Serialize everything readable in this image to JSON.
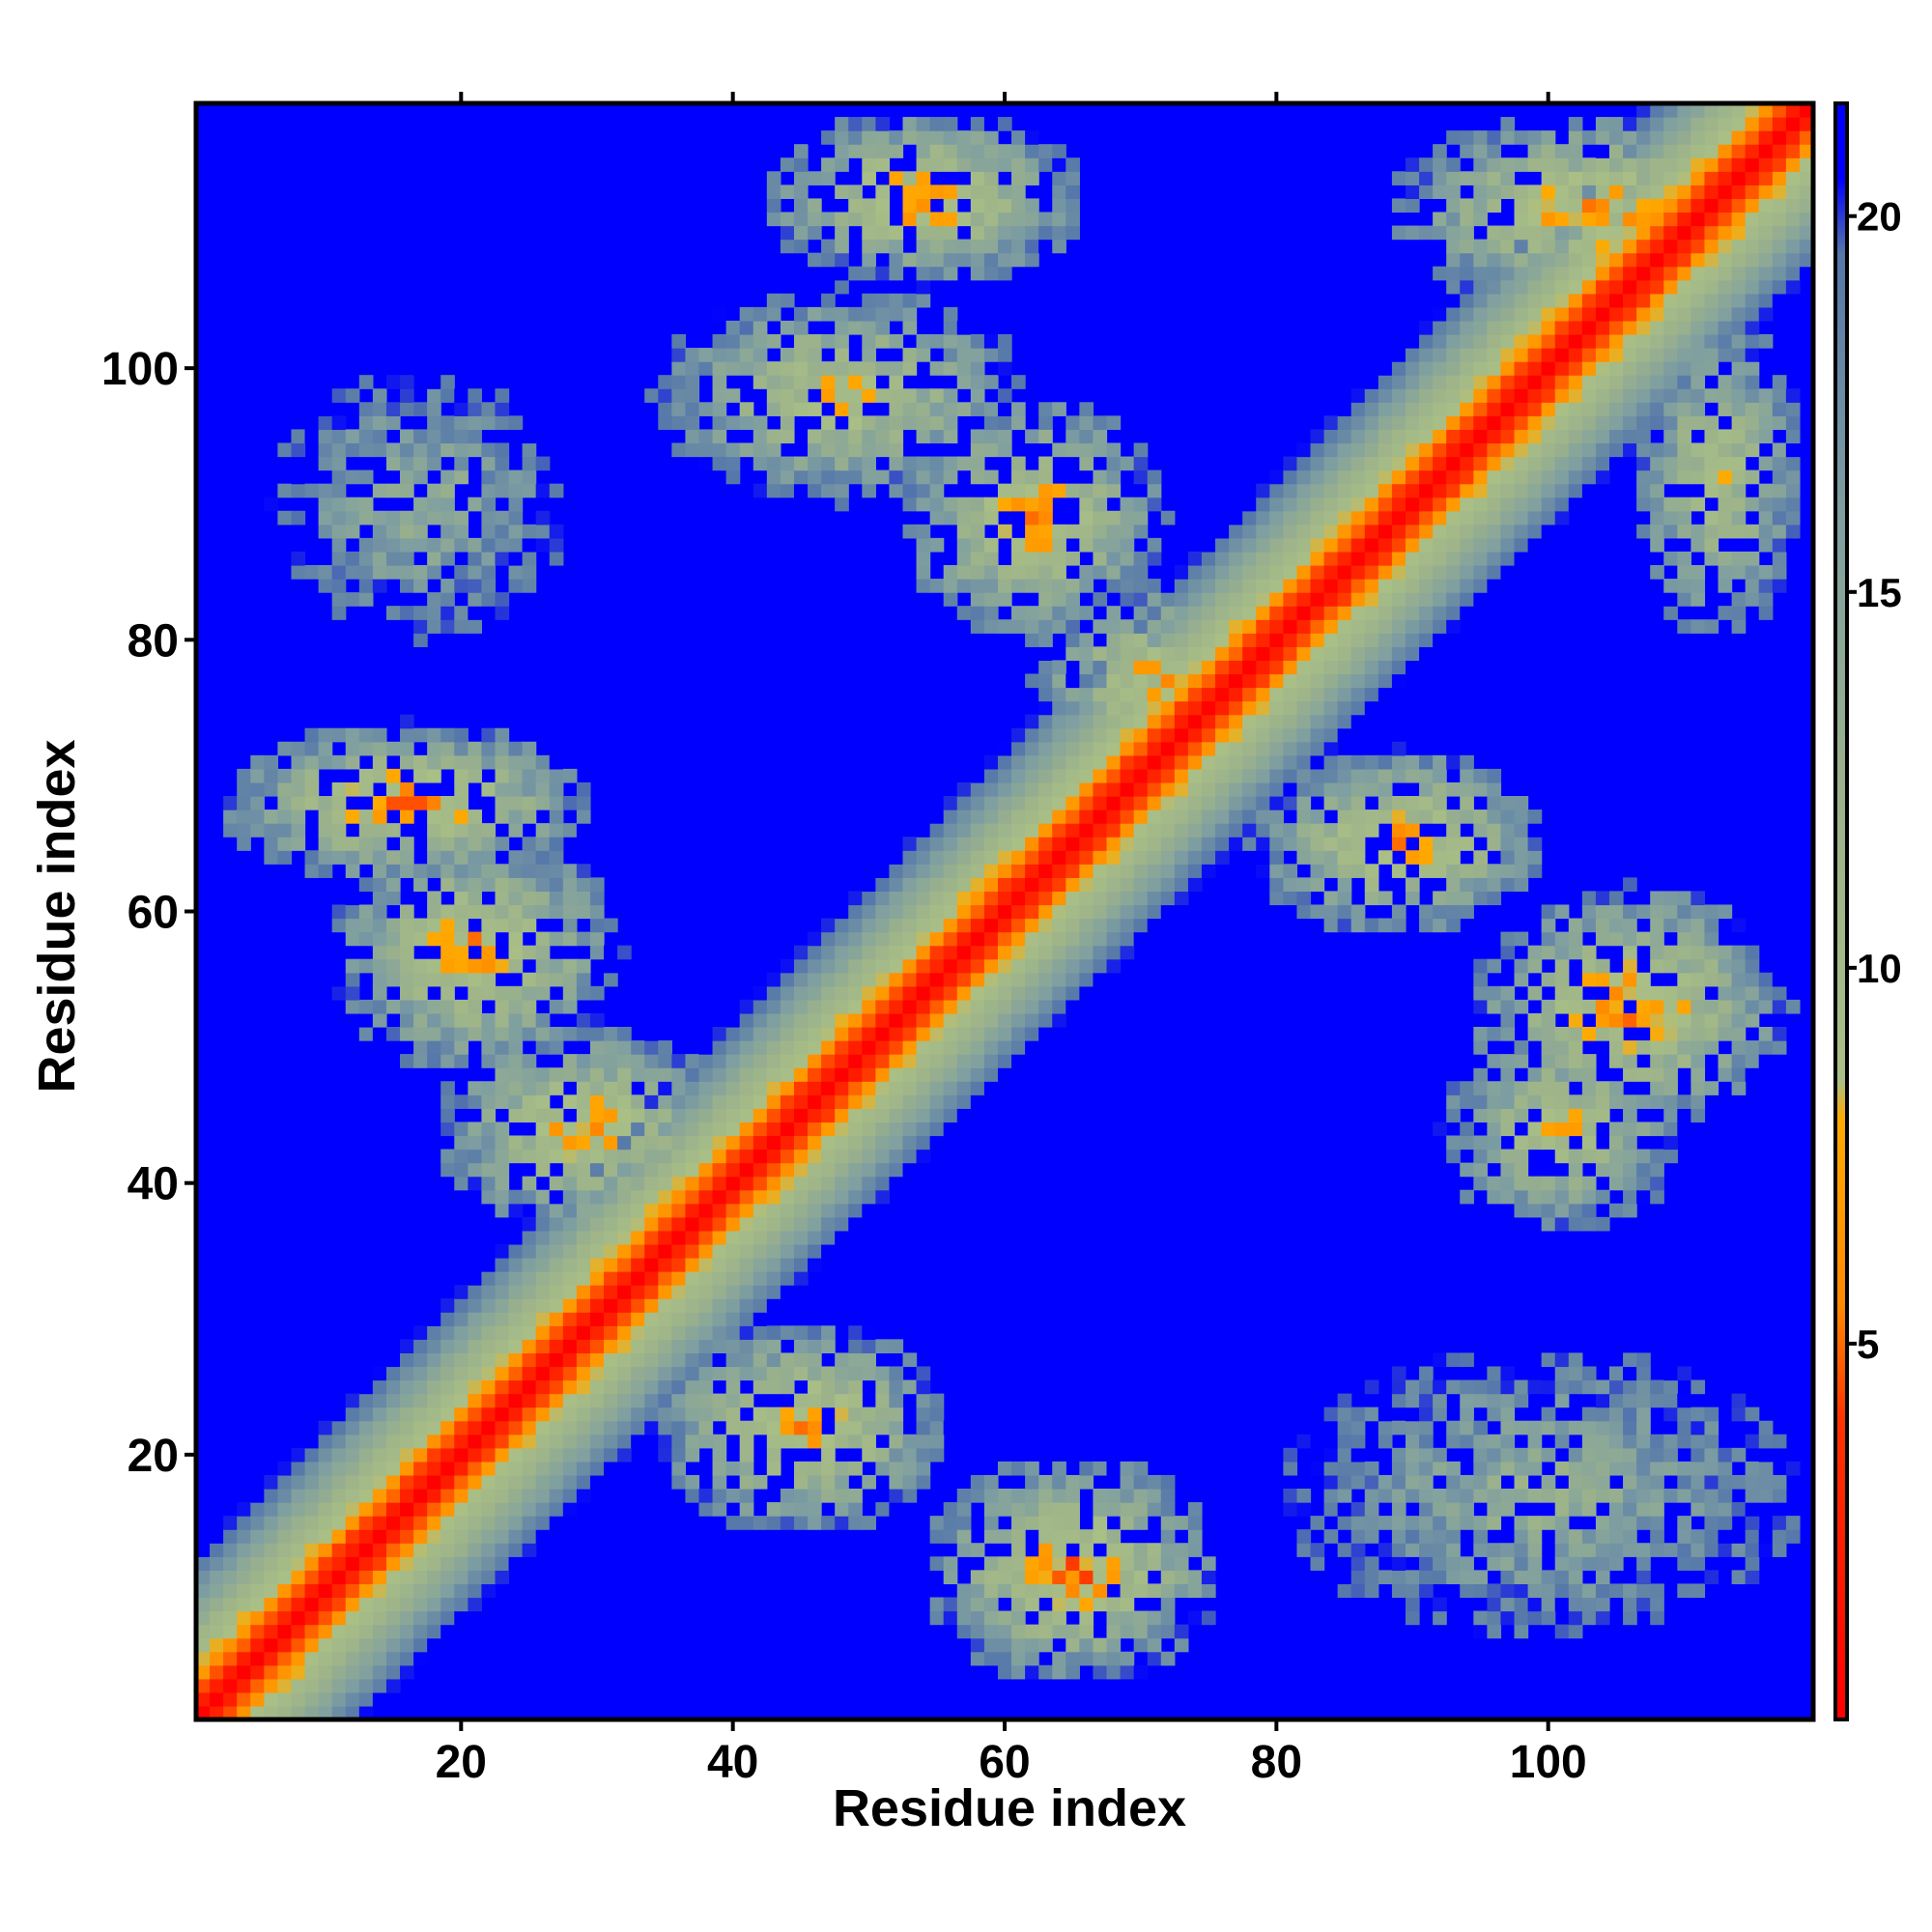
{
  "chart_data": {
    "type": "heatmap",
    "title": "",
    "xlabel": "Residue index",
    "ylabel": "Residue index",
    "x_range": [
      1,
      119
    ],
    "y_range": [
      1,
      119
    ],
    "x_ticks": [
      20,
      40,
      60,
      80,
      100
    ],
    "y_ticks": [
      20,
      40,
      60,
      80,
      100
    ],
    "colorbar": {
      "range": [
        0,
        21.5
      ],
      "ticks": [
        5,
        10,
        15,
        20
      ],
      "tick_labels": [
        "5",
        "10",
        "15",
        "20"
      ],
      "placement": "right",
      "stops": [
        {
          "value": 0,
          "color": "#ff0000"
        },
        {
          "value": 4,
          "color": "#ff3300"
        },
        {
          "value": 5.5,
          "color": "#ff8800"
        },
        {
          "value": 8,
          "color": "#ffaa00"
        },
        {
          "value": 8.5,
          "color": "#a9bf86"
        },
        {
          "value": 12,
          "color": "#9db38a"
        },
        {
          "value": 16,
          "color": "#7f9fa0"
        },
        {
          "value": 19.5,
          "color": "#5577aa"
        },
        {
          "value": 20.5,
          "color": "#0000ff"
        },
        {
          "value": 21.5,
          "color": "#0000ff"
        }
      ]
    },
    "cutoff_value": 21.5,
    "background_color": "#0000ff",
    "diagonal": {
      "description": "distance grows with sequence separation |i-j|",
      "profile": [
        0,
        2.5,
        4.5,
        6.5,
        8.5,
        10,
        11.5,
        13,
        14.5,
        16,
        17.5,
        19,
        20.5
      ]
    },
    "contact_regions": [
      {
        "x": [
          2,
          30
        ],
        "y": [
          62,
          74
        ],
        "min_value": 4.5
      },
      {
        "x": [
          10,
          32
        ],
        "y": [
          48,
          66
        ],
        "min_value": 5
      },
      {
        "x": [
          18,
          40
        ],
        "y": [
          36,
          52
        ],
        "min_value": 5.5
      },
      {
        "x": [
          42,
          66
        ],
        "y": [
          106,
          119
        ],
        "min_value": 4.5
      },
      {
        "x": [
          34,
          62
        ],
        "y": [
          90,
          106
        ],
        "min_value": 7
      },
      {
        "x": [
          6,
          28
        ],
        "y": [
          80,
          100
        ],
        "min_value": 12
      },
      {
        "x": [
          52,
          72
        ],
        "y": [
          80,
          98
        ],
        "min_value": 5
      },
      {
        "x": [
          62,
          80
        ],
        "y": [
          70,
          84
        ],
        "min_value": 5.5
      },
      {
        "x": [
          78,
          100
        ],
        "y": [
          58,
          72
        ],
        "min_value": 5
      },
      {
        "x": [
          94,
          118
        ],
        "y": [
          44,
          62
        ],
        "min_value": 4.5
      },
      {
        "x": [
          92,
          110
        ],
        "y": [
          36,
          52
        ],
        "min_value": 7
      },
      {
        "x": [
          34,
          56
        ],
        "y": [
          14,
          30
        ],
        "min_value": 5
      },
      {
        "x": [
          54,
          76
        ],
        "y": [
          3,
          20
        ],
        "min_value": 4
      },
      {
        "x": [
          80,
          119
        ],
        "y": [
          6,
          28
        ],
        "min_value": 12
      },
      {
        "x": [
          88,
          119
        ],
        "y": [
          104,
          119
        ],
        "min_value": 5
      },
      {
        "x": [
          106,
          119
        ],
        "y": [
          80,
          104
        ],
        "min_value": 8
      }
    ]
  }
}
